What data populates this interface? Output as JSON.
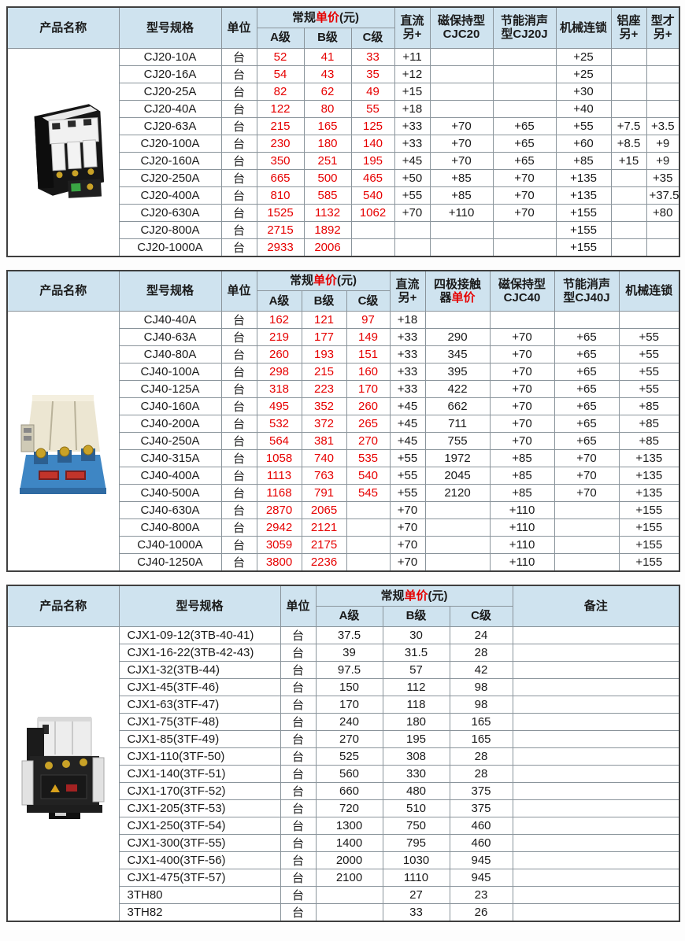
{
  "colors": {
    "header_bg": "#cfe3ef",
    "accent_red": "#e60000",
    "border_gray": "#8a949b",
    "outer_border": "#3f3f3f",
    "text": "#1a1a1a"
  },
  "common_header": {
    "product_name": "产品名称",
    "model": "型号规格",
    "unit": "单位",
    "price_prefix": "常规",
    "price_red": "单价",
    "price_suffix": "(元)",
    "grade_a": "A级",
    "grade_b": "B级",
    "grade_c": "C级"
  },
  "tables": [
    {
      "name": "CJ20",
      "image": "cj20-contactor-photo",
      "header": {
        "dc_l1": "直流",
        "dc_l2": "另+",
        "magnetic_l1": "磁保持型",
        "magnetic_l2": "CJC20",
        "energy_l1": "节能消声",
        "energy_l2": "型CJ20J",
        "mechanical": "机械连锁",
        "alu_l1": "铝座",
        "alu_l2": "另+",
        "profile_l1": "型才",
        "profile_l2": "另+"
      },
      "rows": [
        [
          "CJ20-10A",
          "台",
          "52",
          "41",
          "33",
          "+11",
          "",
          "",
          "+25",
          "",
          ""
        ],
        [
          "CJ20-16A",
          "台",
          "54",
          "43",
          "35",
          "+12",
          "",
          "",
          "+25",
          "",
          ""
        ],
        [
          "CJ20-25A",
          "台",
          "82",
          "62",
          "49",
          "+15",
          "",
          "",
          "+30",
          "",
          ""
        ],
        [
          "CJ20-40A",
          "台",
          "122",
          "80",
          "55",
          "+18",
          "",
          "",
          "+40",
          "",
          ""
        ],
        [
          "CJ20-63A",
          "台",
          "215",
          "165",
          "125",
          "+33",
          "+70",
          "+65",
          "+55",
          "+7.5",
          "+3.5"
        ],
        [
          "CJ20-100A",
          "台",
          "230",
          "180",
          "140",
          "+33",
          "+70",
          "+65",
          "+60",
          "+8.5",
          "+9"
        ],
        [
          "CJ20-160A",
          "台",
          "350",
          "251",
          "195",
          "+45",
          "+70",
          "+65",
          "+85",
          "+15",
          "+9"
        ],
        [
          "CJ20-250A",
          "台",
          "665",
          "500",
          "465",
          "+50",
          "+85",
          "+70",
          "+135",
          "",
          "+35"
        ],
        [
          "CJ20-400A",
          "台",
          "810",
          "585",
          "540",
          "+55",
          "+85",
          "+70",
          "+135",
          "",
          "+37.5"
        ],
        [
          "CJ20-630A",
          "台",
          "1525",
          "1132",
          "1062",
          "+70",
          "+110",
          "+70",
          "+155",
          "",
          "+80"
        ],
        [
          "CJ20-800A",
          "台",
          "2715",
          "1892",
          "",
          "",
          "",
          "",
          "+155",
          "",
          ""
        ],
        [
          "CJ20-1000A",
          "台",
          "2933",
          "2006",
          "",
          "",
          "",
          "",
          "+155",
          "",
          ""
        ]
      ]
    },
    {
      "name": "CJ40",
      "image": "cj40-contactor-photo",
      "header": {
        "dc_l1": "直流",
        "dc_l2": "另+",
        "fourpole_l1": "四极接触",
        "fourpole_l2_prefix": "器",
        "fourpole_l2_red": "单价",
        "magnetic_l1": "磁保持型",
        "magnetic_l2": "CJC40",
        "energy_l1": "节能消声",
        "energy_l2": "型CJ40J",
        "mechanical": "机械连锁"
      },
      "rows": [
        [
          "CJ40-40A",
          "台",
          "162",
          "121",
          "97",
          "+18",
          "",
          "",
          "",
          ""
        ],
        [
          "CJ40-63A",
          "台",
          "219",
          "177",
          "149",
          "+33",
          "290",
          "+70",
          "+65",
          "+55"
        ],
        [
          "CJ40-80A",
          "台",
          "260",
          "193",
          "151",
          "+33",
          "345",
          "+70",
          "+65",
          "+55"
        ],
        [
          "CJ40-100A",
          "台",
          "298",
          "215",
          "160",
          "+33",
          "395",
          "+70",
          "+65",
          "+55"
        ],
        [
          "CJ40-125A",
          "台",
          "318",
          "223",
          "170",
          "+33",
          "422",
          "+70",
          "+65",
          "+55"
        ],
        [
          "CJ40-160A",
          "台",
          "495",
          "352",
          "260",
          "+45",
          "662",
          "+70",
          "+65",
          "+85"
        ],
        [
          "CJ40-200A",
          "台",
          "532",
          "372",
          "265",
          "+45",
          "711",
          "+70",
          "+65",
          "+85"
        ],
        [
          "CJ40-250A",
          "台",
          "564",
          "381",
          "270",
          "+45",
          "755",
          "+70",
          "+65",
          "+85"
        ],
        [
          "CJ40-315A",
          "台",
          "1058",
          "740",
          "535",
          "+55",
          "1972",
          "+85",
          "+70",
          "+135"
        ],
        [
          "CJ40-400A",
          "台",
          "1113",
          "763",
          "540",
          "+55",
          "2045",
          "+85",
          "+70",
          "+135"
        ],
        [
          "CJ40-500A",
          "台",
          "1168",
          "791",
          "545",
          "+55",
          "2120",
          "+85",
          "+70",
          "+135"
        ],
        [
          "CJ40-630A",
          "台",
          "2870",
          "2065",
          "",
          "+70",
          "",
          "+110",
          "",
          "+155"
        ],
        [
          "CJ40-800A",
          "台",
          "2942",
          "2121",
          "",
          "+70",
          "",
          "+110",
          "",
          "+155"
        ],
        [
          "CJ40-1000A",
          "台",
          "3059",
          "2175",
          "",
          "+70",
          "",
          "+110",
          "",
          "+155"
        ],
        [
          "CJ40-1250A",
          "台",
          "3800",
          "2236",
          "",
          "+70",
          "",
          "+110",
          "",
          "+155"
        ]
      ]
    },
    {
      "name": "CJX1",
      "image": "cjx1-contactor-photo",
      "header": {
        "remark": "备注"
      },
      "rows": [
        [
          "CJX1-09-12(3TB-40-41)",
          "台",
          "37.5",
          "30",
          "24",
          ""
        ],
        [
          "CJX1-16-22(3TB-42-43)",
          "台",
          "39",
          "31.5",
          "28",
          ""
        ],
        [
          "CJX1-32(3TB-44)",
          "台",
          "97.5",
          "57",
          "42",
          ""
        ],
        [
          "CJX1-45(3TF-46)",
          "台",
          "150",
          "112",
          "98",
          ""
        ],
        [
          "CJX1-63(3TF-47)",
          "台",
          "170",
          "118",
          "98",
          ""
        ],
        [
          "CJX1-75(3TF-48)",
          "台",
          "240",
          "180",
          "165",
          ""
        ],
        [
          "CJX1-85(3TF-49)",
          "台",
          "270",
          "195",
          "165",
          ""
        ],
        [
          "CJX1-110(3TF-50)",
          "台",
          "525",
          "308",
          "28",
          ""
        ],
        [
          "CJX1-140(3TF-51)",
          "台",
          "560",
          "330",
          "28",
          ""
        ],
        [
          "CJX1-170(3TF-52)",
          "台",
          "660",
          "480",
          "375",
          ""
        ],
        [
          "CJX1-205(3TF-53)",
          "台",
          "720",
          "510",
          "375",
          ""
        ],
        [
          "CJX1-250(3TF-54)",
          "台",
          "1300",
          "750",
          "460",
          ""
        ],
        [
          "CJX1-300(3TF-55)",
          "台",
          "1400",
          "795",
          "460",
          ""
        ],
        [
          "CJX1-400(3TF-56)",
          "台",
          "2000",
          "1030",
          "945",
          ""
        ],
        [
          "CJX1-475(3TF-57)",
          "台",
          "2100",
          "1110",
          "945",
          ""
        ],
        [
          "3TH80",
          "台",
          "",
          "27",
          "23",
          ""
        ],
        [
          "3TH82",
          "台",
          "",
          "33",
          "26",
          ""
        ]
      ]
    }
  ]
}
